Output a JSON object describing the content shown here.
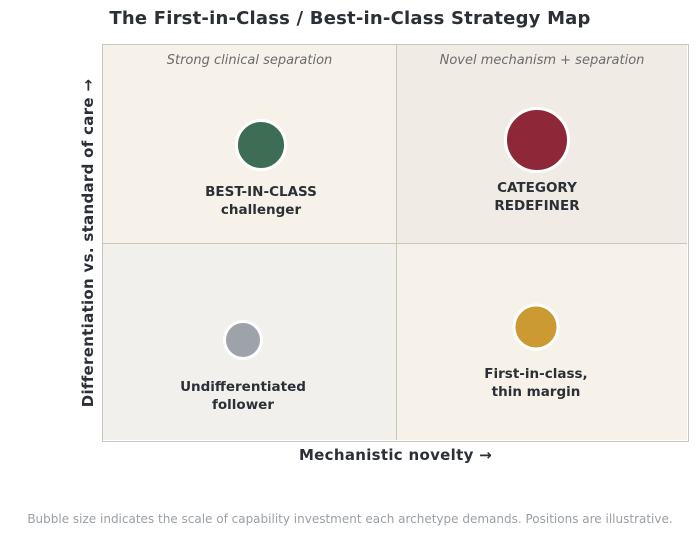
{
  "title": "The First-in-Class / Best-in-Class Strategy Map",
  "axes": {
    "y_label": "Differentiation vs. standard of care  →",
    "x_label": "Mechanistic novelty  →"
  },
  "quadrant_titles": {
    "top_left": "Strong clinical separation",
    "top_right": "Novel mechanism + separation"
  },
  "archetypes": [
    {
      "key": "best_in_class",
      "line1": "BEST-IN-CLASS",
      "line2": "challenger",
      "color": "#3d6e55",
      "relative_size": 0.65
    },
    {
      "key": "category_redefiner",
      "line1": "CATEGORY",
      "line2": "REDEFINER",
      "color": "#8e2737",
      "relative_size": 0.82
    },
    {
      "key": "undifferentiated",
      "line1": "Undifferentiated",
      "line2": "follower",
      "color": "#9ea2a9",
      "relative_size": 0.5
    },
    {
      "key": "first_in_class",
      "line1": "First-in-class,",
      "line2": "thin margin",
      "color": "#cc9a33",
      "relative_size": 0.58
    }
  ],
  "footnote": "Bubble size indicates the scale of capability investment each archetype demands. Positions are illustrative."
}
